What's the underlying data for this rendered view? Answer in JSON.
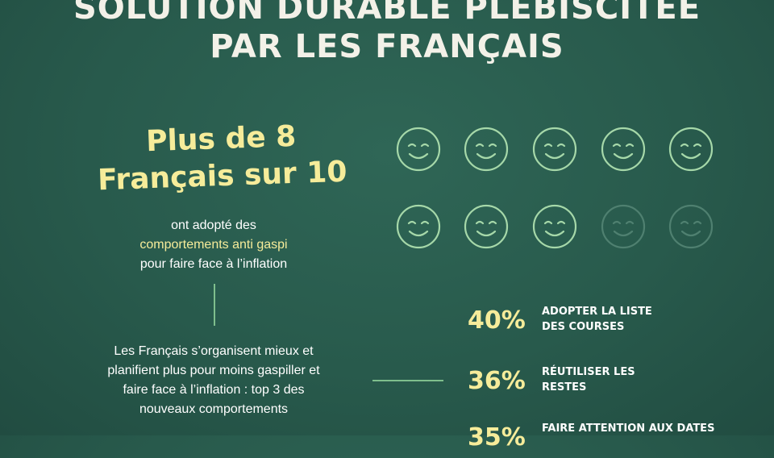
{
  "title": [
    "SOLUTION DURABLE PLÉBISCITÉE",
    "PAR LES FRANÇAIS"
  ],
  "headline": [
    "Plus de 8",
    "Français sur 10"
  ],
  "subtitle": {
    "line1": "ont adopté des",
    "highlight": "comportements anti gaspi",
    "line3": "pour faire face à l’inflation"
  },
  "paragraph": [
    "Les Français s’organisent mieux et",
    "planifient plus pour moins gaspiller et",
    "faire face à l’inflation : top 3 des",
    "nouveaux comportements"
  ],
  "faces": {
    "active": 8,
    "total": 10,
    "icon": "smiley-face-icon",
    "color_active": "#a6d8a9",
    "color_inactive": "#4f8070"
  },
  "stats": [
    {
      "value": "40%",
      "label": [
        "ADOPTER LA LISTE",
        "DES COURSES"
      ]
    },
    {
      "value": "36%",
      "label": [
        "RÉUTILISER LES",
        "RESTES"
      ]
    },
    {
      "value": "35%",
      "label": [
        "FAIRE ATTENTION AUX DATES",
        ""
      ]
    }
  ],
  "colors": {
    "accent": "#f6ec9a",
    "line": "#7fbf8d"
  }
}
